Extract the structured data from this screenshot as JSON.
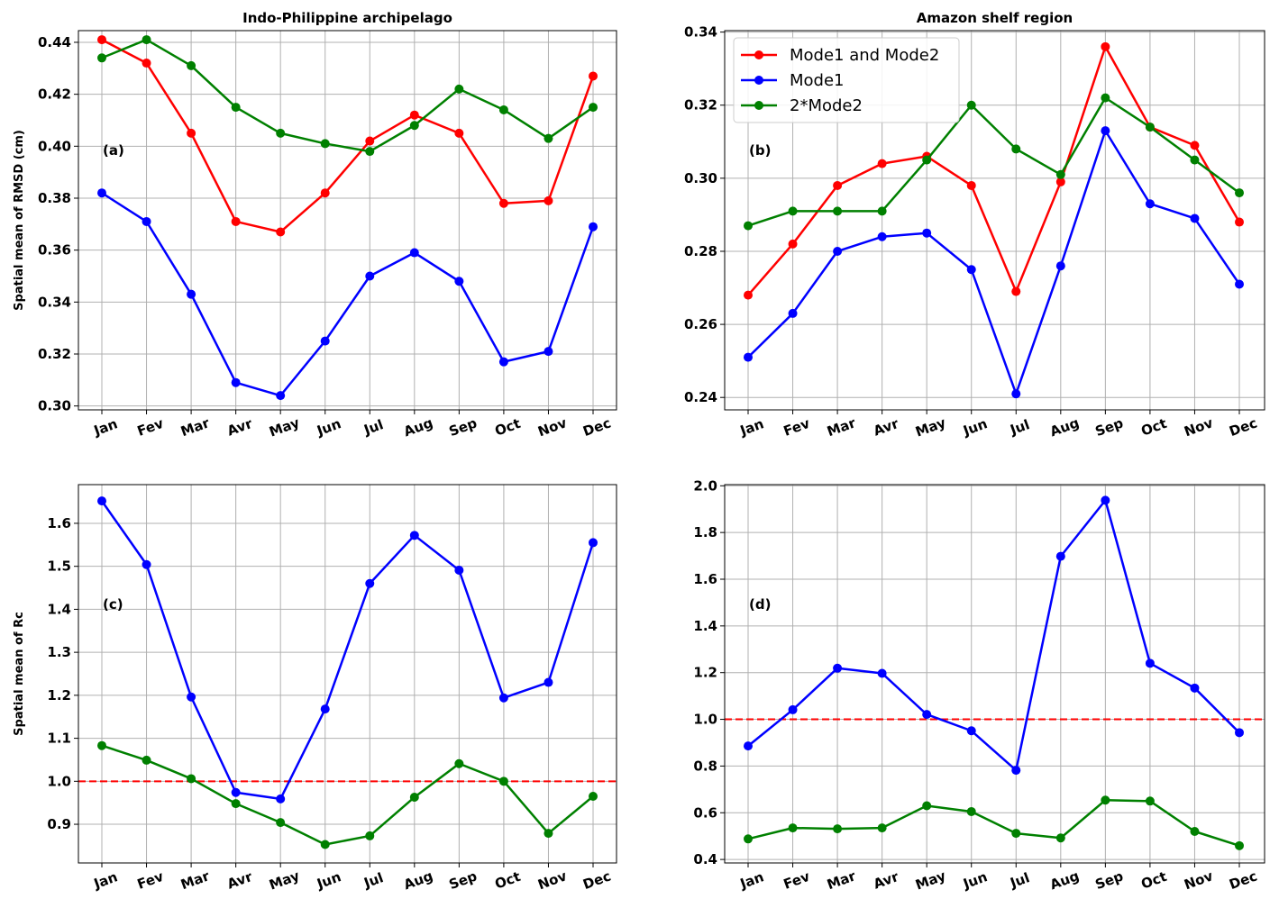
{
  "chart_data": [
    {
      "type": "line",
      "panel_label": "(a)",
      "title": "Indo-Philippine archipelago",
      "xlabel": "",
      "ylabel": "Spatial mean of RMSD (cm)",
      "categories": [
        "Jan",
        "Fev",
        "Mar",
        "Avr",
        "May",
        "Jun",
        "Jul",
        "Aug",
        "Sep",
        "Oct",
        "Nov",
        "Dec"
      ],
      "ylim": [
        0.2985,
        0.4445
      ],
      "yticks": [
        0.3,
        0.32,
        0.34,
        0.36,
        0.38,
        0.4,
        0.42,
        0.44
      ],
      "ytick_decimals": 2,
      "grid": true,
      "series": [
        {
          "name": "Mode1 and Mode2",
          "color": "#ff0000",
          "values": [
            0.441,
            0.432,
            0.405,
            0.371,
            0.367,
            0.382,
            0.402,
            0.412,
            0.405,
            0.378,
            0.379,
            0.427
          ]
        },
        {
          "name": "Mode1",
          "color": "#0000ff",
          "values": [
            0.382,
            0.371,
            0.343,
            0.309,
            0.304,
            0.325,
            0.35,
            0.359,
            0.348,
            0.317,
            0.321,
            0.369
          ]
        },
        {
          "name": "2*Mode2",
          "color": "#008000",
          "values": [
            0.434,
            0.441,
            0.431,
            0.415,
            0.405,
            0.401,
            0.398,
            0.408,
            0.422,
            0.414,
            0.403,
            0.415
          ]
        }
      ]
    },
    {
      "type": "line",
      "panel_label": "(b)",
      "title": "Amazon shelf region",
      "xlabel": "",
      "ylabel": "",
      "categories": [
        "Jan",
        "Fev",
        "Mar",
        "Avr",
        "May",
        "Jun",
        "Jul",
        "Aug",
        "Sep",
        "Oct",
        "Nov",
        "Dec"
      ],
      "ylim": [
        0.2366,
        0.3404
      ],
      "yticks": [
        0.24,
        0.26,
        0.28,
        0.3,
        0.32,
        0.34
      ],
      "ytick_decimals": 2,
      "grid": true,
      "legend": "top-left",
      "series": [
        {
          "name": "Mode1 and Mode2",
          "color": "#ff0000",
          "values": [
            0.268,
            0.282,
            0.298,
            0.304,
            0.306,
            0.298,
            0.269,
            0.299,
            0.336,
            0.314,
            0.309,
            0.288
          ]
        },
        {
          "name": "Mode1",
          "color": "#0000ff",
          "values": [
            0.251,
            0.263,
            0.28,
            0.284,
            0.285,
            0.275,
            0.241,
            0.276,
            0.313,
            0.293,
            0.289,
            0.271
          ]
        },
        {
          "name": "2*Mode2",
          "color": "#008000",
          "values": [
            0.287,
            0.291,
            0.291,
            0.291,
            0.305,
            0.32,
            0.308,
            0.301,
            0.322,
            0.314,
            0.305,
            0.296
          ]
        }
      ]
    },
    {
      "type": "line",
      "panel_label": "(c)",
      "title": "",
      "xlabel": "",
      "ylabel": "Spatial mean of Rc",
      "categories": [
        "Jan",
        "Fev",
        "Mar",
        "Avr",
        "May",
        "Jun",
        "Jul",
        "Aug",
        "Sep",
        "Oct",
        "Nov",
        "Dec"
      ],
      "ylim": [
        0.81,
        1.69
      ],
      "yticks": [
        0.9,
        1.0,
        1.1,
        1.2,
        1.3,
        1.4,
        1.5,
        1.6
      ],
      "ytick_decimals": 1,
      "grid": true,
      "reference_line": 1.0,
      "series": [
        {
          "name": "Mode1",
          "color": "#0000ff",
          "values": [
            1.652,
            1.504,
            1.196,
            0.974,
            0.959,
            1.168,
            1.46,
            1.572,
            1.491,
            1.194,
            1.23,
            1.555
          ]
        },
        {
          "name": "2*Mode2",
          "color": "#008000",
          "values": [
            1.083,
            1.049,
            1.006,
            0.948,
            0.904,
            0.853,
            0.873,
            0.963,
            1.041,
            1.0,
            0.879,
            0.965
          ]
        }
      ]
    },
    {
      "type": "line",
      "panel_label": "(d)",
      "title": "",
      "xlabel": "",
      "ylabel": "",
      "categories": [
        "Jan",
        "Fev",
        "Mar",
        "Avr",
        "May",
        "Jun",
        "Jul",
        "Aug",
        "Sep",
        "Oct",
        "Nov",
        "Dec"
      ],
      "ylim": [
        0.385,
        2.005
      ],
      "yticks": [
        0.4,
        0.6,
        0.8,
        1.0,
        1.2,
        1.4,
        1.6,
        1.8,
        2.0
      ],
      "ytick_decimals": 1,
      "grid": true,
      "reference_line": 1.0,
      "series": [
        {
          "name": "Mode1",
          "color": "#0000ff",
          "values": [
            0.886,
            1.041,
            1.219,
            1.197,
            1.021,
            0.951,
            0.782,
            1.698,
            1.938,
            1.24,
            1.134,
            0.943
          ]
        },
        {
          "name": "2*Mode2",
          "color": "#008000",
          "values": [
            0.488,
            0.535,
            0.531,
            0.535,
            0.63,
            0.605,
            0.512,
            0.492,
            0.654,
            0.65,
            0.52,
            0.459
          ]
        }
      ]
    }
  ]
}
